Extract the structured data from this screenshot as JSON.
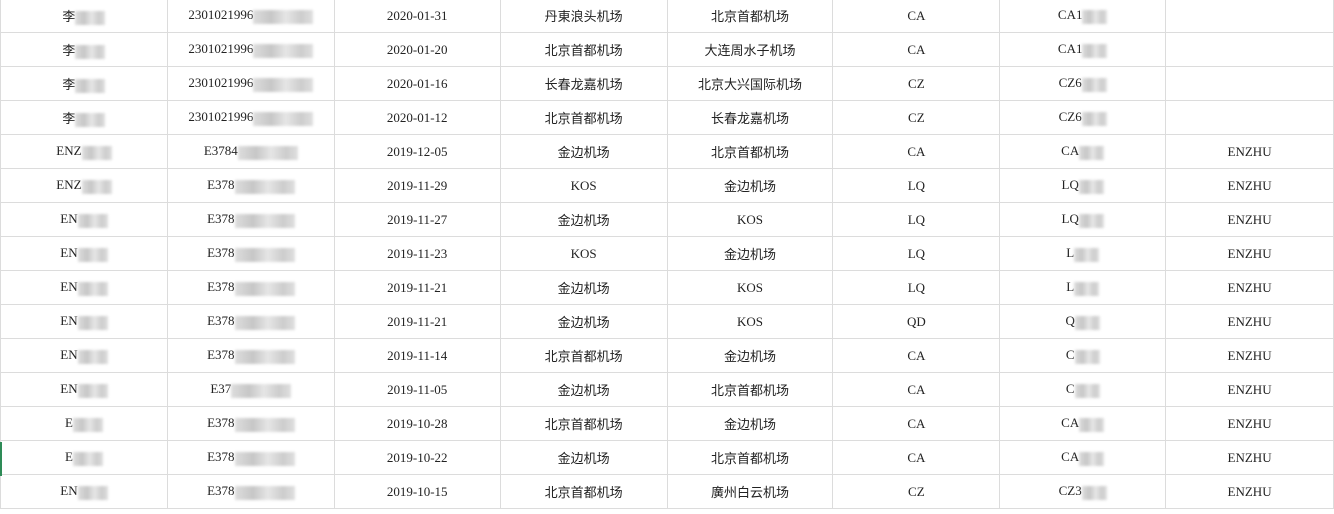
{
  "columns_count": 8,
  "rows": [
    {
      "name": "李",
      "id": "2301021996",
      "date": "2020-01-31",
      "from": "丹東浪头机场",
      "to": "北京首都机场",
      "airline": "CA",
      "flight": "CA1",
      "passenger": ""
    },
    {
      "name": "李",
      "id": "2301021996",
      "date": "2020-01-20",
      "from": "北京首都机场",
      "to": "大连周水子机场",
      "airline": "CA",
      "flight": "CA1",
      "passenger": ""
    },
    {
      "name": "李",
      "id": "2301021996",
      "date": "2020-01-16",
      "from": "长春龙嘉机场",
      "to": "北京大兴国际机场",
      "airline": "CZ",
      "flight": "CZ6",
      "passenger": ""
    },
    {
      "name": "李",
      "id": "2301021996",
      "date": "2020-01-12",
      "from": "北京首都机场",
      "to": "长春龙嘉机场",
      "airline": "CZ",
      "flight": "CZ6",
      "passenger": ""
    },
    {
      "name": "ENZ",
      "id": "E3784",
      "date": "2019-12-05",
      "from": "金边机场",
      "to": "北京首都机场",
      "airline": "CA",
      "flight": "CA",
      "passenger": "ENZHU"
    },
    {
      "name": "ENZ",
      "id": "E378",
      "date": "2019-11-29",
      "from": "KOS",
      "to": "金边机场",
      "airline": "LQ",
      "flight": "LQ",
      "passenger": "ENZHU"
    },
    {
      "name": "EN",
      "id": "E378",
      "date": "2019-11-27",
      "from": "金边机场",
      "to": "KOS",
      "airline": "LQ",
      "flight": "LQ",
      "passenger": "ENZHU"
    },
    {
      "name": "EN",
      "id": "E378",
      "date": "2019-11-23",
      "from": "KOS",
      "to": "金边机场",
      "airline": "LQ",
      "flight": "L",
      "passenger": "ENZHU"
    },
    {
      "name": "EN",
      "id": "E378",
      "date": "2019-11-21",
      "from": "金边机场",
      "to": "KOS",
      "airline": "LQ",
      "flight": "L",
      "passenger": "ENZHU"
    },
    {
      "name": "EN",
      "id": "E378",
      "date": "2019-11-21",
      "from": "金边机场",
      "to": "KOS",
      "airline": "QD",
      "flight": "Q",
      "passenger": "ENZHU"
    },
    {
      "name": "EN",
      "id": "E378",
      "date": "2019-11-14",
      "from": "北京首都机场",
      "to": "金边机场",
      "airline": "CA",
      "flight": "C",
      "passenger": "ENZHU"
    },
    {
      "name": "EN",
      "id": "E37",
      "date": "2019-11-05",
      "from": "金边机场",
      "to": "北京首都机场",
      "airline": "CA",
      "flight": "C",
      "passenger": "ENZHU"
    },
    {
      "name": "E",
      "id": "E378",
      "date": "2019-10-28",
      "from": "北京首都机场",
      "to": "金边机场",
      "airline": "CA",
      "flight": "CA",
      "passenger": "ENZHU"
    },
    {
      "name": "E",
      "id": "E378",
      "date": "2019-10-22",
      "from": "金边机场",
      "to": "北京首都机场",
      "airline": "CA",
      "flight": "CA",
      "passenger": "ENZHU"
    },
    {
      "name": "EN",
      "id": "E378",
      "date": "2019-10-15",
      "from": "北京首都机场",
      "to": "廣州白云机场",
      "airline": "CZ",
      "flight": "CZ3",
      "passenger": "ENZHU"
    }
  ]
}
